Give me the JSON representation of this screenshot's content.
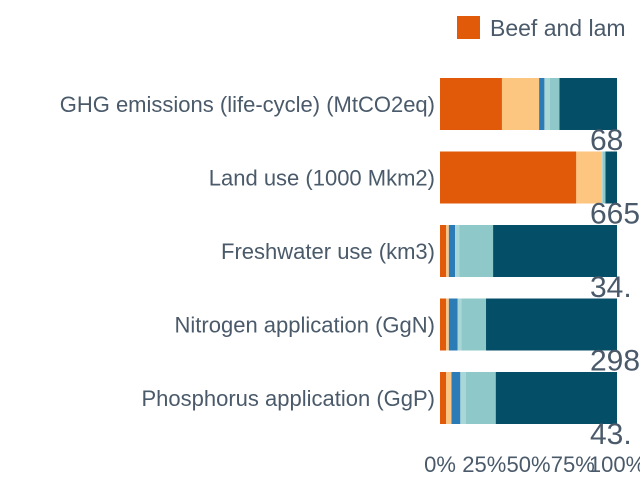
{
  "chart_data": {
    "type": "bar",
    "orientation": "horizontal",
    "stacked": true,
    "xlim": [
      0,
      100
    ],
    "x_unit": "percent",
    "x_ticks": [
      "0%",
      "25%",
      "50%",
      "75%",
      "100%"
    ],
    "legend": {
      "placement": "top-right",
      "entries": [
        "Beef and lam"
      ]
    },
    "categories": [
      "GHG emissions (life-cycle) (MtCO2eq)",
      "Land use (1000 Mkm2)",
      "Freshwater use (km3)",
      "Nitrogen application (GgN)",
      "Phosphorus application (GgP)"
    ],
    "totals": [
      "68",
      "665",
      "34.",
      "298",
      "43."
    ],
    "segment_colors": [
      "#e05a0a",
      "#fdc680",
      "#2b7bb6",
      "#a9d6d6",
      "#8fc8c8",
      "#044f67"
    ],
    "segments": [
      [
        35,
        21,
        3,
        3,
        5.5,
        32.5
      ],
      [
        77,
        14.5,
        0,
        0.5,
        1.5,
        6.5
      ],
      [
        3.5,
        1.5,
        3.5,
        2.5,
        19,
        70
      ],
      [
        3.5,
        1.5,
        5,
        2,
        14,
        74
      ],
      [
        3.5,
        3,
        5,
        3,
        17,
        68.5
      ]
    ]
  }
}
